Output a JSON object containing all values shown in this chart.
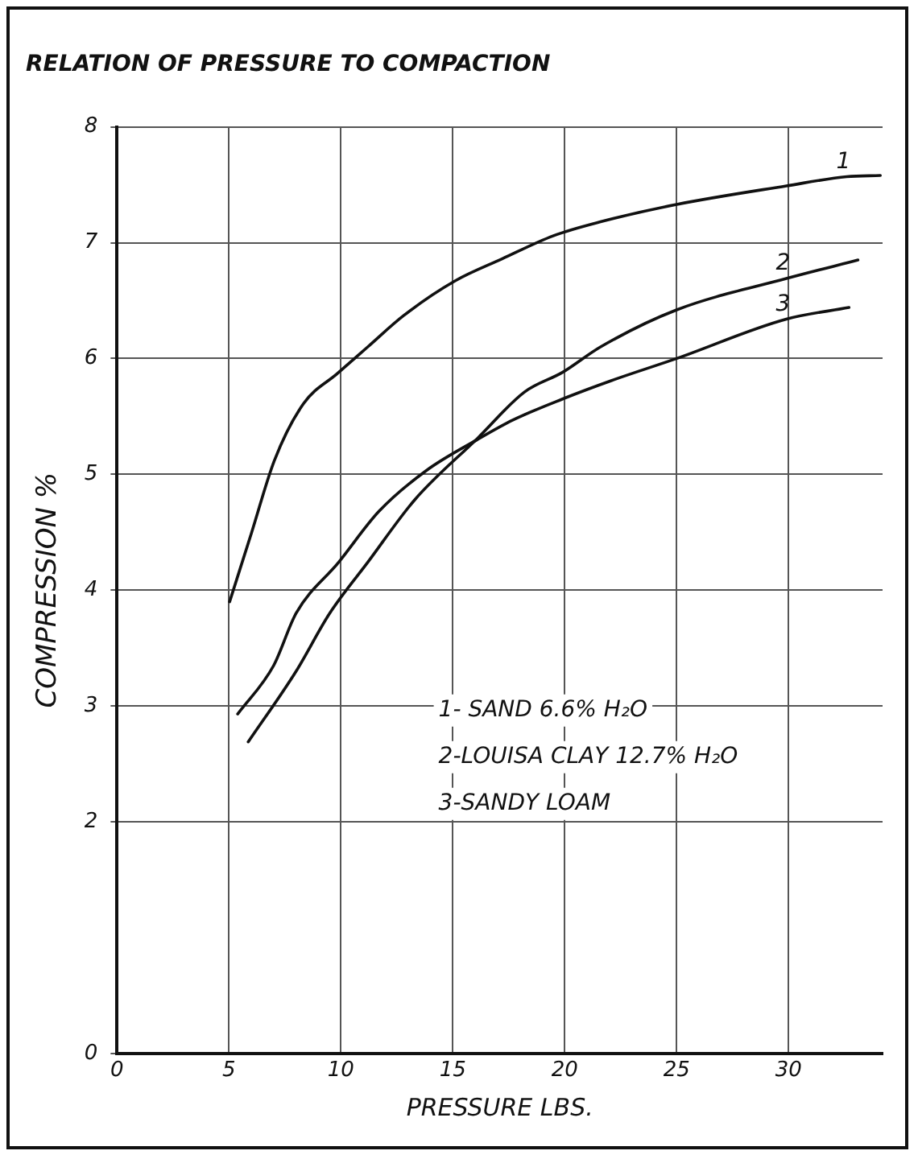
{
  "chart_data": {
    "type": "line",
    "title": "RELATION OF PRESSURE TO COMPACTION",
    "xlabel": "PRESSURE LBS.",
    "ylabel": "COMPRESSION %",
    "xlim": [
      0,
      34.2
    ],
    "xticks": [
      0,
      5,
      10,
      15,
      20,
      25,
      30
    ],
    "ylim": [
      0,
      8
    ],
    "yticks": [
      0,
      2,
      3,
      4,
      5,
      6,
      7,
      8
    ],
    "grid": true,
    "legend": false,
    "marker": "none",
    "line_style": "solid",
    "annotations": [
      "1- SAND 6.6% H₂O",
      "2-LOUISA CLAY 12.7% H₂O",
      "3-SANDY LOAM"
    ],
    "series": [
      {
        "name": "1",
        "color": "#111111",
        "x": [
          5.03,
          6.0,
          7.03,
          8.33,
          9.84,
          11.2,
          12.8,
          15.1,
          17.2,
          19.5,
          21.6,
          25.0,
          29.9,
          32.6,
          34.1
        ],
        "values": [
          3.9,
          4.49,
          5.12,
          5.61,
          5.87,
          6.1,
          6.37,
          6.67,
          6.86,
          7.06,
          7.18,
          7.33,
          7.49,
          7.57,
          7.58
        ]
      },
      {
        "name": "2",
        "color": "#111111",
        "x": [
          5.86,
          8.0,
          9.5,
          11.2,
          13.3,
          16.1,
          18.2,
          19.9,
          21.6,
          25.0,
          29.9,
          33.1
        ],
        "values": [
          2.69,
          3.3,
          3.8,
          4.24,
          4.78,
          5.31,
          5.71,
          5.88,
          6.1,
          6.42,
          6.69,
          6.85
        ]
      },
      {
        "name": "3",
        "color": "#111111",
        "x": [
          5.39,
          7.0,
          8.0,
          9.9,
          11.7,
          13.8,
          16.1,
          17.7,
          19.9,
          22.1,
          25.0,
          29.9,
          32.7
        ],
        "values": [
          2.93,
          3.35,
          3.8,
          4.24,
          4.68,
          5.03,
          5.3,
          5.47,
          5.65,
          5.81,
          6.0,
          6.34,
          6.44
        ]
      }
    ]
  }
}
